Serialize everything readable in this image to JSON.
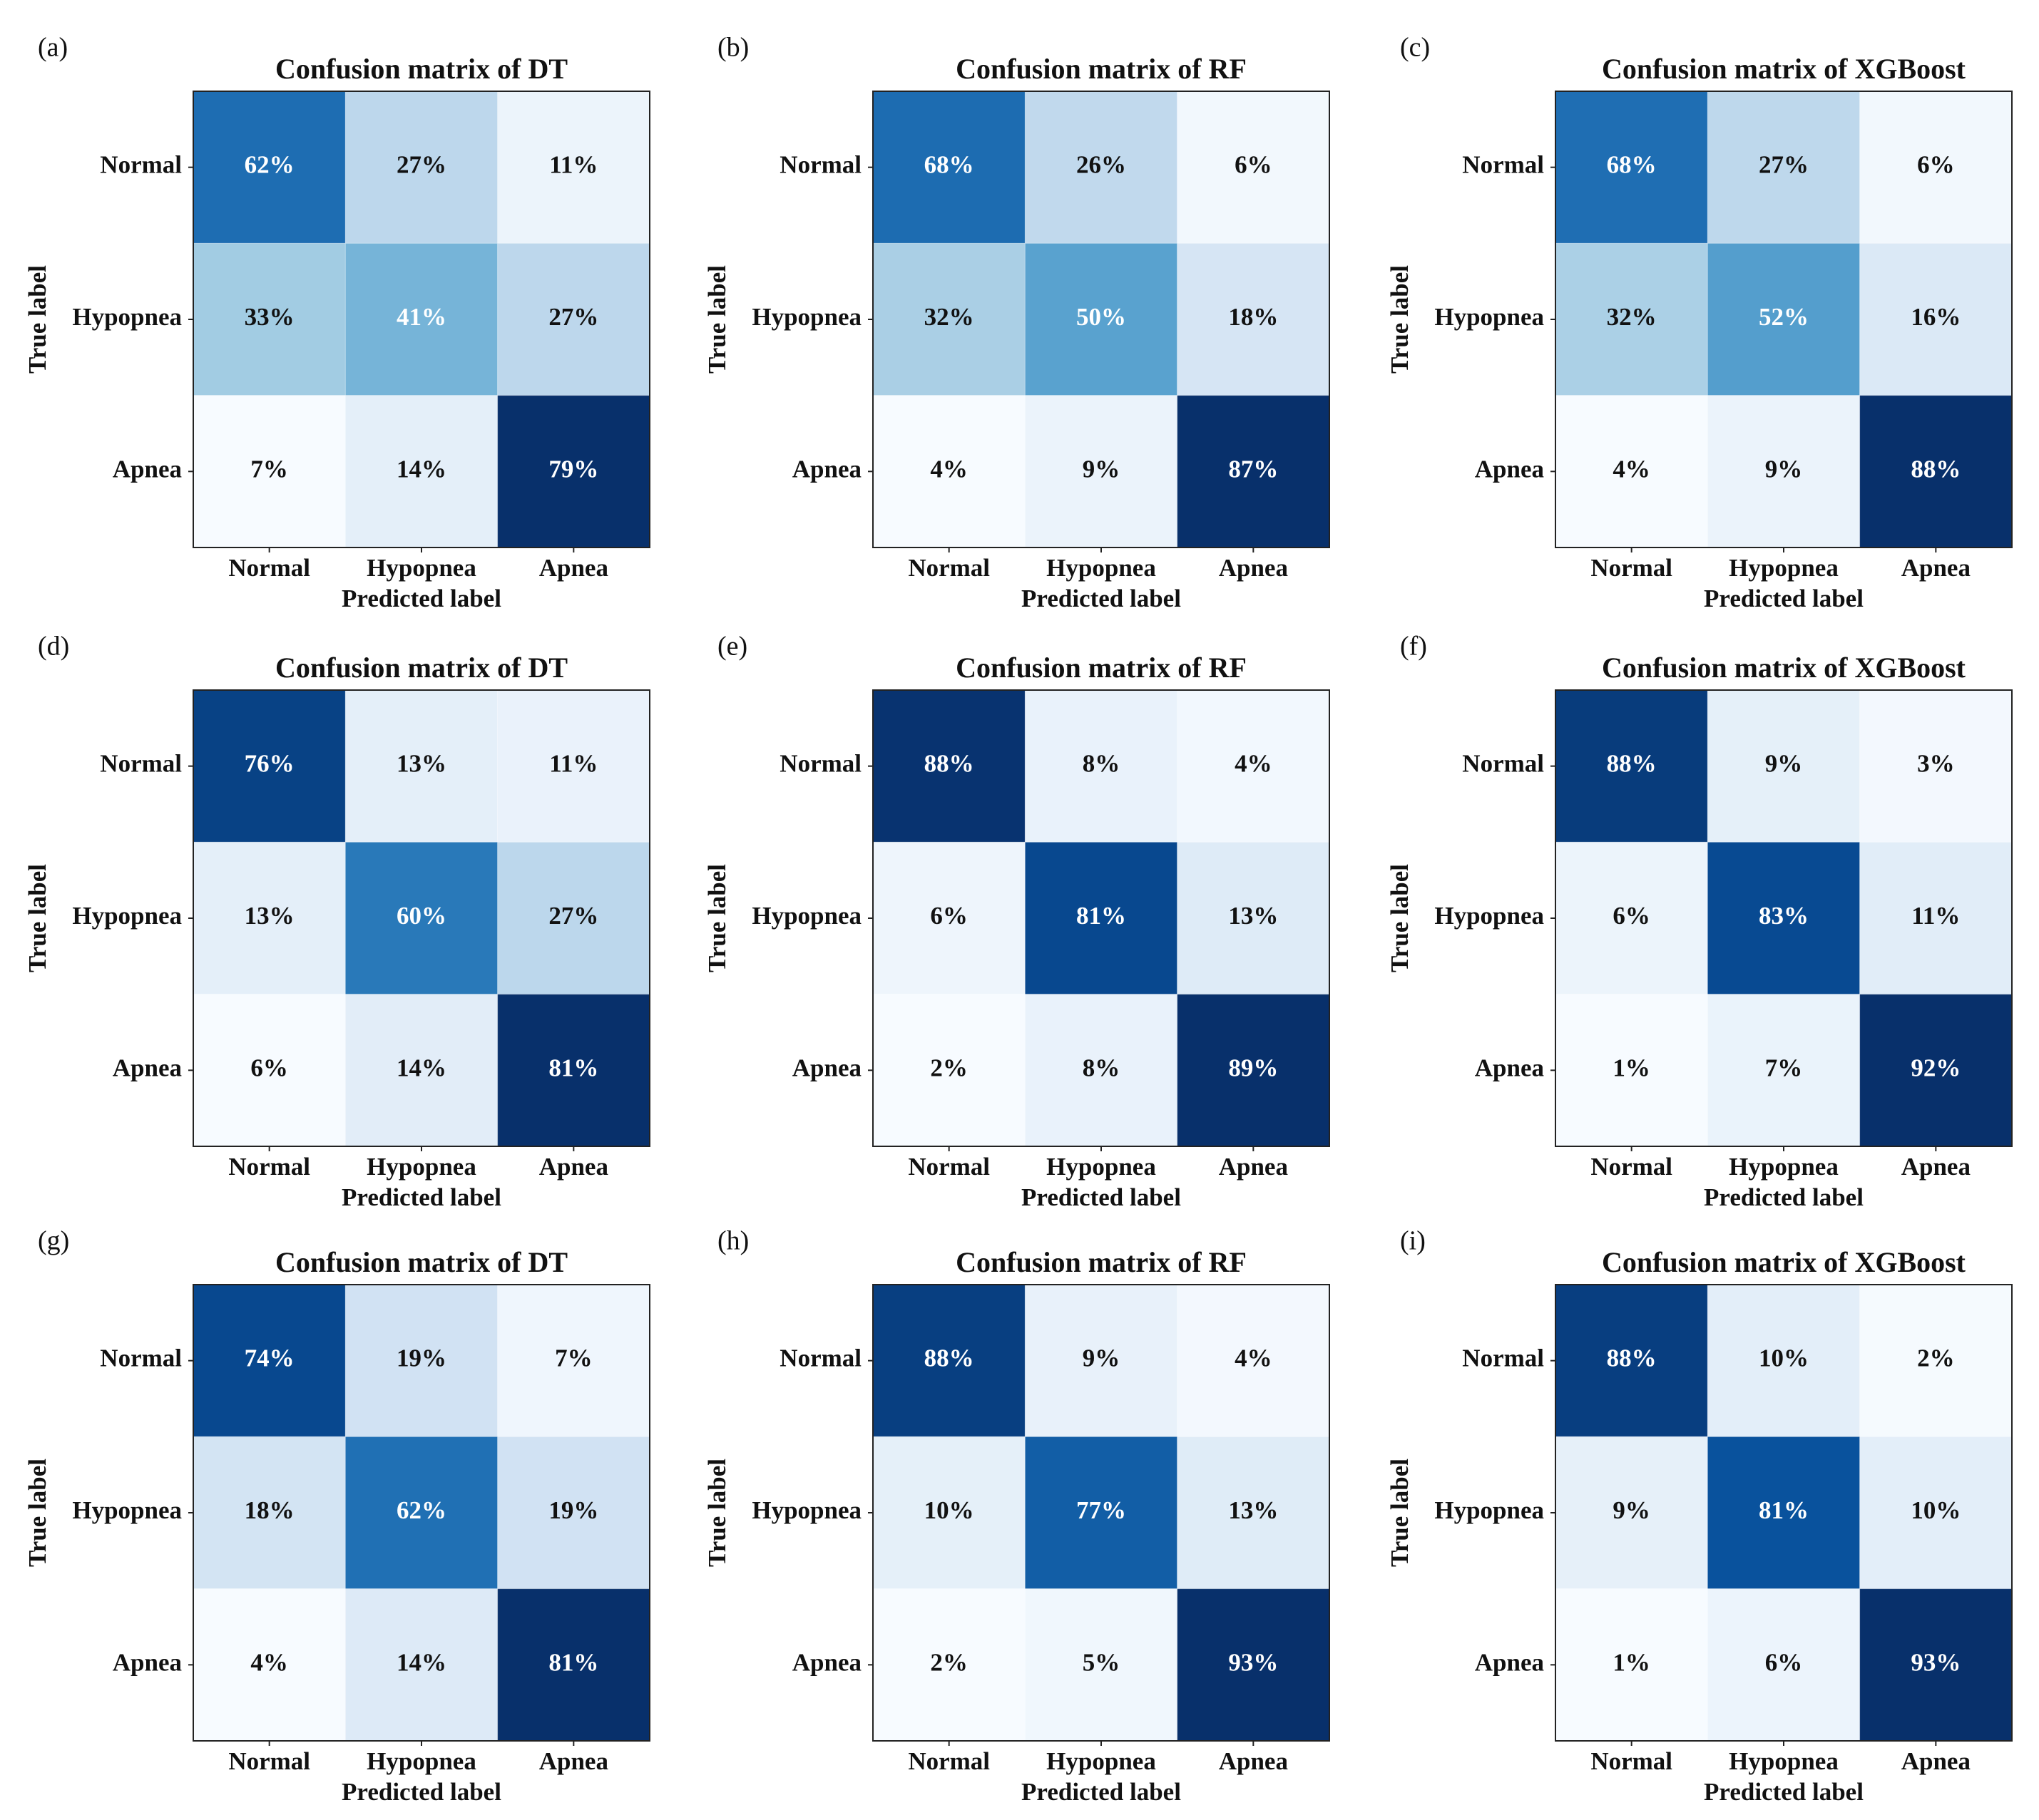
{
  "chart_data": [
    {
      "type": "heatmap",
      "panel": "(a)",
      "title": "Confusion matrix of DT",
      "x_categories": [
        "Normal",
        "Hypopnea",
        "Apnea"
      ],
      "y_categories": [
        "Normal",
        "Hypopnea",
        "Apnea"
      ],
      "xlabel": "Predicted label",
      "ylabel": "True label",
      "colormap": "Blues",
      "values": [
        [
          62,
          27,
          11
        ],
        [
          33,
          41,
          27
        ],
        [
          7,
          14,
          79
        ]
      ],
      "value_labels": [
        [
          "62%",
          "27%",
          "11%"
        ],
        [
          "33%",
          "41%",
          "27%"
        ],
        [
          "7%",
          "14%",
          "79%"
        ]
      ]
    },
    {
      "type": "heatmap",
      "panel": "(b)",
      "title": "Confusion matrix of RF",
      "x_categories": [
        "Normal",
        "Hypopnea",
        "Apnea"
      ],
      "y_categories": [
        "Normal",
        "Hypopnea",
        "Apnea"
      ],
      "xlabel": "Predicted label",
      "ylabel": "True label",
      "colormap": "Blues",
      "values": [
        [
          68,
          26,
          6
        ],
        [
          32,
          50,
          18
        ],
        [
          4,
          9,
          87
        ]
      ],
      "value_labels": [
        [
          "68%",
          "26%",
          "6%"
        ],
        [
          "32%",
          "50%",
          "18%"
        ],
        [
          "4%",
          "9%",
          "87%"
        ]
      ]
    },
    {
      "type": "heatmap",
      "panel": "(c)",
      "title": "Confusion matrix of XGBoost",
      "x_categories": [
        "Normal",
        "Hypopnea",
        "Apnea"
      ],
      "y_categories": [
        "Normal",
        "Hypopnea",
        "Apnea"
      ],
      "xlabel": "Predicted label",
      "ylabel": "True label",
      "colormap": "Blues",
      "values": [
        [
          68,
          27,
          6
        ],
        [
          32,
          52,
          16
        ],
        [
          4,
          9,
          88
        ]
      ],
      "value_labels": [
        [
          "68%",
          "27%",
          "6%"
        ],
        [
          "32%",
          "52%",
          "16%"
        ],
        [
          "4%",
          "9%",
          "88%"
        ]
      ]
    },
    {
      "type": "heatmap",
      "panel": "(d)",
      "title": "Confusion matrix of DT",
      "x_categories": [
        "Normal",
        "Hypopnea",
        "Apnea"
      ],
      "y_categories": [
        "Normal",
        "Hypopnea",
        "Apnea"
      ],
      "xlabel": "Predicted label",
      "ylabel": "True label",
      "colormap": "Blues",
      "values": [
        [
          76,
          13,
          11
        ],
        [
          13,
          60,
          27
        ],
        [
          6,
          14,
          81
        ]
      ],
      "value_labels": [
        [
          "76%",
          "13%",
          "11%"
        ],
        [
          "13%",
          "60%",
          "27%"
        ],
        [
          "6%",
          "14%",
          "81%"
        ]
      ]
    },
    {
      "type": "heatmap",
      "panel": "(e)",
      "title": "Confusion matrix of RF",
      "x_categories": [
        "Normal",
        "Hypopnea",
        "Apnea"
      ],
      "y_categories": [
        "Normal",
        "Hypopnea",
        "Apnea"
      ],
      "xlabel": "Predicted label",
      "ylabel": "True label",
      "colormap": "Blues",
      "values": [
        [
          88,
          8,
          4
        ],
        [
          6,
          81,
          13
        ],
        [
          2,
          8,
          89
        ]
      ],
      "value_labels": [
        [
          "88%",
          "8%",
          "4%"
        ],
        [
          "6%",
          "81%",
          "13%"
        ],
        [
          "2%",
          "8%",
          "89%"
        ]
      ]
    },
    {
      "type": "heatmap",
      "panel": "(f)",
      "title": "Confusion matrix of XGBoost",
      "x_categories": [
        "Normal",
        "Hypopnea",
        "Apnea"
      ],
      "y_categories": [
        "Normal",
        "Hypopnea",
        "Apnea"
      ],
      "xlabel": "Predicted label",
      "ylabel": "True label",
      "colormap": "Blues",
      "values": [
        [
          88,
          9,
          3
        ],
        [
          6,
          83,
          11
        ],
        [
          1,
          7,
          92
        ]
      ],
      "value_labels": [
        [
          "88%",
          "9%",
          "3%"
        ],
        [
          "6%",
          "83%",
          "11%"
        ],
        [
          "1%",
          "7%",
          "92%"
        ]
      ]
    },
    {
      "type": "heatmap",
      "panel": "(g)",
      "title": "Confusion matrix of DT",
      "x_categories": [
        "Normal",
        "Hypopnea",
        "Apnea"
      ],
      "y_categories": [
        "Normal",
        "Hypopnea",
        "Apnea"
      ],
      "xlabel": "Predicted label",
      "ylabel": "True label",
      "colormap": "Blues",
      "values": [
        [
          74,
          19,
          7
        ],
        [
          18,
          62,
          19
        ],
        [
          4,
          14,
          81
        ]
      ],
      "value_labels": [
        [
          "74%",
          "19%",
          "7%"
        ],
        [
          "18%",
          "62%",
          "19%"
        ],
        [
          "4%",
          "14%",
          "81%"
        ]
      ]
    },
    {
      "type": "heatmap",
      "panel": "(h)",
      "title": "Confusion matrix of RF",
      "x_categories": [
        "Normal",
        "Hypopnea",
        "Apnea"
      ],
      "y_categories": [
        "Normal",
        "Hypopnea",
        "Apnea"
      ],
      "xlabel": "Predicted label",
      "ylabel": "True label",
      "colormap": "Blues",
      "values": [
        [
          88,
          9,
          4
        ],
        [
          10,
          77,
          13
        ],
        [
          2,
          5,
          93
        ]
      ],
      "value_labels": [
        [
          "88%",
          "9%",
          "4%"
        ],
        [
          "10%",
          "77%",
          "13%"
        ],
        [
          "2%",
          "5%",
          "93%"
        ]
      ]
    },
    {
      "type": "heatmap",
      "panel": "(i)",
      "title": "Confusion matrix of XGBoost",
      "x_categories": [
        "Normal",
        "Hypopnea",
        "Apnea"
      ],
      "y_categories": [
        "Normal",
        "Hypopnea",
        "Apnea"
      ],
      "xlabel": "Predicted label",
      "ylabel": "True label",
      "colormap": "Blues",
      "values": [
        [
          88,
          10,
          2
        ],
        [
          9,
          81,
          10
        ],
        [
          1,
          6,
          93
        ]
      ],
      "value_labels": [
        [
          "88%",
          "10%",
          "2%"
        ],
        [
          "9%",
          "81%",
          "10%"
        ],
        [
          "1%",
          "6%",
          "93%"
        ]
      ]
    }
  ]
}
